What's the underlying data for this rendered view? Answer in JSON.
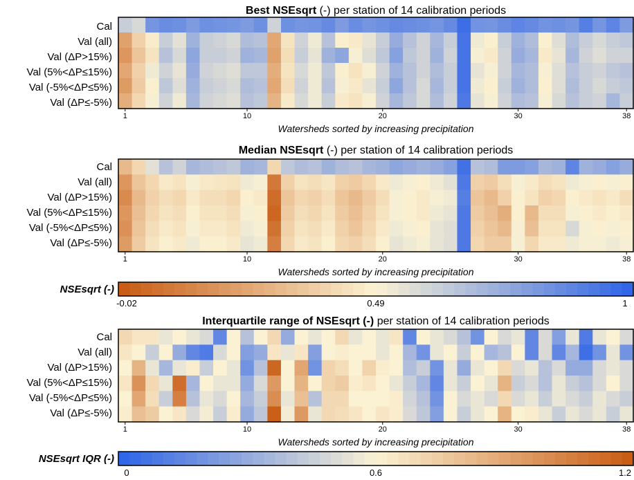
{
  "colors": {
    "scale_low": "#c85a12",
    "scale_mid": "#fbf2d3",
    "scale_high": "#2e63e8",
    "border": "#000000"
  },
  "chart_data": [
    {
      "type": "heatmap",
      "title_bold": "Best NSEsqrt",
      "title_rest": " (-) per station of 14 calibration periods",
      "xlabel": "Watersheds sorted by increasing precipitation",
      "xticks": [
        1,
        10,
        20,
        30,
        38
      ],
      "rows": [
        "Cal",
        "Val (all)",
        "Val (ΔP>15%)",
        "Val (5%<ΔP≤15%)",
        "Val (-5%<ΔP≤5%)",
        "Val (ΔP≤-5%)"
      ],
      "n_columns": 38,
      "scale": "NSEsqrt",
      "values": [
        [
          0.62,
          0.58,
          0.82,
          0.85,
          0.84,
          0.8,
          0.84,
          0.83,
          0.82,
          0.8,
          0.84,
          0.6,
          0.84,
          0.82,
          0.83,
          0.86,
          0.8,
          0.85,
          0.82,
          0.84,
          0.86,
          0.85,
          0.84,
          0.82,
          0.86,
          0.96,
          0.83,
          0.82,
          0.85,
          0.88,
          0.86,
          0.83,
          0.84,
          0.82,
          0.9,
          0.82,
          0.88,
          0.8
        ],
        [
          0.22,
          0.38,
          0.47,
          0.62,
          0.55,
          0.72,
          0.62,
          0.6,
          0.58,
          0.68,
          0.66,
          0.24,
          0.44,
          0.6,
          0.52,
          0.66,
          0.48,
          0.46,
          0.54,
          0.62,
          0.74,
          0.66,
          0.6,
          0.7,
          0.62,
          0.94,
          0.52,
          0.48,
          0.62,
          0.72,
          0.68,
          0.48,
          0.56,
          0.68,
          0.62,
          0.58,
          0.62,
          0.64
        ],
        [
          0.18,
          0.34,
          0.44,
          0.66,
          0.58,
          0.76,
          0.62,
          0.62,
          0.6,
          0.72,
          0.7,
          0.22,
          0.42,
          0.62,
          0.54,
          0.72,
          0.76,
          0.5,
          0.56,
          0.64,
          0.78,
          0.64,
          0.6,
          0.72,
          0.6,
          0.94,
          0.5,
          0.46,
          0.6,
          0.74,
          0.7,
          0.46,
          0.54,
          0.7,
          0.6,
          0.56,
          0.6,
          0.6
        ],
        [
          0.24,
          0.38,
          0.52,
          0.6,
          0.54,
          0.74,
          0.6,
          0.58,
          0.56,
          0.64,
          0.64,
          0.26,
          0.44,
          0.58,
          0.52,
          0.64,
          0.48,
          0.44,
          0.5,
          0.6,
          0.72,
          0.66,
          0.6,
          0.68,
          0.62,
          0.94,
          0.54,
          0.5,
          0.6,
          0.7,
          0.68,
          0.5,
          0.56,
          0.66,
          0.62,
          0.6,
          0.64,
          0.66
        ],
        [
          0.2,
          0.36,
          0.48,
          0.64,
          0.56,
          0.72,
          0.62,
          0.6,
          0.58,
          0.68,
          0.66,
          0.24,
          0.42,
          0.6,
          0.52,
          0.66,
          0.5,
          0.46,
          0.54,
          0.62,
          0.76,
          0.66,
          0.58,
          0.7,
          0.62,
          0.94,
          0.52,
          0.48,
          0.62,
          0.72,
          0.68,
          0.48,
          0.56,
          0.68,
          0.62,
          0.58,
          0.62,
          0.64
        ],
        [
          0.26,
          0.4,
          0.5,
          0.6,
          0.52,
          0.7,
          0.6,
          0.58,
          0.56,
          0.66,
          0.64,
          0.28,
          0.46,
          0.58,
          0.52,
          0.62,
          0.46,
          0.44,
          0.5,
          0.6,
          0.7,
          0.64,
          0.58,
          0.68,
          0.6,
          0.92,
          0.54,
          0.5,
          0.6,
          0.68,
          0.66,
          0.5,
          0.58,
          0.66,
          0.62,
          0.6,
          0.7,
          0.62
        ]
      ]
    },
    {
      "type": "heatmap",
      "title_bold": "Median NSEsqrt",
      "title_rest": " (-) per station of 14 calibration periods",
      "xlabel": "Watersheds sorted by increasing precipitation",
      "xticks": [
        1,
        10,
        20,
        30,
        38
      ],
      "rows": [
        "Cal",
        "Val (all)",
        "Val (ΔP>15%)",
        "Val (5%<ΔP≤15%)",
        "Val (-5%<ΔP≤5%)",
        "Val (ΔP≤-5%)"
      ],
      "n_columns": 38,
      "scale": "NSEsqrt",
      "values": [
        [
          0.3,
          0.4,
          0.55,
          0.66,
          0.6,
          0.7,
          0.68,
          0.66,
          0.64,
          0.72,
          0.7,
          0.4,
          0.64,
          0.68,
          0.66,
          0.72,
          0.68,
          0.66,
          0.7,
          0.72,
          0.76,
          0.74,
          0.72,
          0.74,
          0.78,
          0.95,
          0.66,
          0.68,
          0.8,
          0.8,
          0.78,
          0.7,
          0.72,
          0.88,
          0.72,
          0.74,
          0.78,
          0.74
        ],
        [
          0.18,
          0.34,
          0.4,
          0.46,
          0.44,
          0.5,
          0.46,
          0.45,
          0.44,
          0.52,
          0.5,
          0.08,
          0.38,
          0.44,
          0.42,
          0.45,
          0.38,
          0.36,
          0.4,
          0.46,
          0.52,
          0.5,
          0.48,
          0.52,
          0.55,
          0.92,
          0.38,
          0.36,
          0.42,
          0.5,
          0.46,
          0.42,
          0.44,
          0.52,
          0.5,
          0.48,
          0.5,
          0.48
        ],
        [
          0.14,
          0.3,
          0.38,
          0.42,
          0.4,
          0.46,
          0.42,
          0.42,
          0.4,
          0.48,
          0.46,
          0.04,
          0.34,
          0.4,
          0.38,
          0.42,
          0.34,
          0.3,
          0.36,
          0.42,
          0.5,
          0.48,
          0.46,
          0.5,
          0.52,
          0.9,
          0.34,
          0.3,
          0.38,
          0.48,
          0.44,
          0.38,
          0.4,
          0.48,
          0.46,
          0.44,
          0.46,
          0.42
        ],
        [
          0.18,
          0.32,
          0.4,
          0.44,
          0.42,
          0.48,
          0.44,
          0.44,
          0.42,
          0.5,
          0.48,
          0.02,
          0.36,
          0.42,
          0.4,
          0.44,
          0.36,
          0.32,
          0.38,
          0.44,
          0.5,
          0.48,
          0.46,
          0.52,
          0.54,
          0.92,
          0.36,
          0.32,
          0.26,
          0.48,
          0.3,
          0.42,
          0.42,
          0.5,
          0.48,
          0.46,
          0.48,
          0.46
        ],
        [
          0.16,
          0.34,
          0.42,
          0.46,
          0.44,
          0.5,
          0.46,
          0.46,
          0.44,
          0.52,
          0.5,
          0.06,
          0.38,
          0.44,
          0.42,
          0.46,
          0.38,
          0.34,
          0.4,
          0.46,
          0.52,
          0.5,
          0.48,
          0.54,
          0.56,
          0.92,
          0.38,
          0.34,
          0.3,
          0.5,
          0.32,
          0.44,
          0.44,
          0.58,
          0.5,
          0.48,
          0.5,
          0.48
        ],
        [
          0.2,
          0.36,
          0.44,
          0.48,
          0.46,
          0.52,
          0.48,
          0.48,
          0.46,
          0.54,
          0.52,
          0.1,
          0.4,
          0.46,
          0.44,
          0.48,
          0.4,
          0.38,
          0.42,
          0.48,
          0.54,
          0.52,
          0.5,
          0.54,
          0.56,
          0.92,
          0.4,
          0.36,
          0.36,
          0.5,
          0.4,
          0.46,
          0.46,
          0.52,
          0.5,
          0.5,
          0.52,
          0.5
        ]
      ]
    },
    {
      "type": "colorbar",
      "label": "NSEsqrt (-)",
      "scale": "NSEsqrt",
      "range": [
        -0.02,
        1
      ],
      "ticks": [
        "-0.02",
        "0.49",
        "1"
      ],
      "tick_values": [
        -0.02,
        0.49,
        1
      ]
    },
    {
      "type": "heatmap",
      "title_bold": "Interquartile range of NSEsqrt (-)",
      "title_rest": " per station of 14 calibration periods",
      "xlabel": "Watersheds sorted by increasing precipitation",
      "xticks": [
        1,
        10,
        20,
        30,
        38
      ],
      "rows": [
        "Cal",
        "Val (all)",
        "Val (ΔP>15%)",
        "Val (5%<ΔP≤15%)",
        "Val (-5%<ΔP≤5%)",
        "Val (ΔP≤-5%)"
      ],
      "n_columns": 38,
      "scale": "IQR",
      "values": [
        [
          0.7,
          0.65,
          0.65,
          0.55,
          0.6,
          0.55,
          0.5,
          0.15,
          0.6,
          0.4,
          0.6,
          0.7,
          0.3,
          0.6,
          0.55,
          0.6,
          0.7,
          0.55,
          0.6,
          0.55,
          0.65,
          0.15,
          0.6,
          0.55,
          0.5,
          0.4,
          0.2,
          0.6,
          0.5,
          0.55,
          0.15,
          0.5,
          0.25,
          0.55,
          0.1,
          0.55,
          0.6,
          0.5
        ],
        [
          0.65,
          0.6,
          0.45,
          0.6,
          0.3,
          0.15,
          0.1,
          0.5,
          0.6,
          0.25,
          0.3,
          0.65,
          0.55,
          0.65,
          0.25,
          0.6,
          0.62,
          0.6,
          0.6,
          0.55,
          0.6,
          0.35,
          0.2,
          0.55,
          0.6,
          0.45,
          0.6,
          0.35,
          0.4,
          0.6,
          0.15,
          0.5,
          0.15,
          0.35,
          0.05,
          0.2,
          0.55,
          0.2
        ],
        [
          0.6,
          0.85,
          0.55,
          0.35,
          0.55,
          0.62,
          0.45,
          0.6,
          0.55,
          0.2,
          0.4,
          1.15,
          0.6,
          0.9,
          0.2,
          0.72,
          0.68,
          0.6,
          0.72,
          0.62,
          0.6,
          0.38,
          0.45,
          0.2,
          0.55,
          0.3,
          0.55,
          0.6,
          0.7,
          0.5,
          0.55,
          0.4,
          0.5,
          0.3,
          0.3,
          0.5,
          0.55,
          0.5
        ],
        [
          0.65,
          0.98,
          0.7,
          0.55,
          1.12,
          0.35,
          0.6,
          0.55,
          0.55,
          0.3,
          0.5,
          0.95,
          0.6,
          0.85,
          0.6,
          0.72,
          0.75,
          0.62,
          0.65,
          0.6,
          0.55,
          0.45,
          0.35,
          0.15,
          0.55,
          0.45,
          0.6,
          0.55,
          0.85,
          0.45,
          0.5,
          0.4,
          0.55,
          0.45,
          0.4,
          0.5,
          0.6,
          0.5
        ],
        [
          0.6,
          0.9,
          0.68,
          0.45,
          1.05,
          0.4,
          0.55,
          0.5,
          0.6,
          0.35,
          0.45,
          1.0,
          0.55,
          0.8,
          0.4,
          0.7,
          0.7,
          0.6,
          0.6,
          0.6,
          0.62,
          0.48,
          0.4,
          0.2,
          0.6,
          0.5,
          0.55,
          0.5,
          0.7,
          0.5,
          0.55,
          0.45,
          0.55,
          0.5,
          0.45,
          0.55,
          0.5,
          0.45
        ],
        [
          0.62,
          0.8,
          0.75,
          0.6,
          0.65,
          0.5,
          0.58,
          0.45,
          0.62,
          0.3,
          0.42,
          1.18,
          0.58,
          0.95,
          0.55,
          0.7,
          0.68,
          0.65,
          0.6,
          0.65,
          0.62,
          0.5,
          0.42,
          0.25,
          0.6,
          0.45,
          0.55,
          0.6,
          0.85,
          0.6,
          0.62,
          0.55,
          0.45,
          0.55,
          0.5,
          0.55,
          0.45,
          0.55
        ]
      ]
    },
    {
      "type": "colorbar",
      "label": "NSEsqrt IQR (-)",
      "scale": "IQR",
      "range": [
        0,
        1.2
      ],
      "ticks": [
        "0",
        "0.6",
        "1.2"
      ],
      "tick_values": [
        0,
        0.6,
        1.2
      ]
    }
  ]
}
